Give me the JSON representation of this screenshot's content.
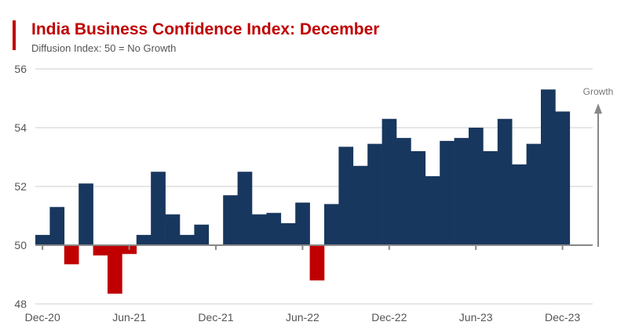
{
  "title": "India Business Confidence Index: December",
  "subtitle": "Diffusion Index: 50 = No Growth",
  "colors": {
    "above": "#18375e",
    "below": "#c00000",
    "title": "#c00000"
  },
  "chart_data": {
    "type": "bar",
    "title": "India Business Confidence Index: December",
    "subtitle": "Diffusion Index: 50 = No Growth",
    "baseline": 50,
    "ylim": [
      48,
      56
    ],
    "yticks": [
      48,
      50,
      52,
      54,
      56
    ],
    "grid": true,
    "xtick_labels": [
      "Dec-20",
      "Jun-21",
      "Dec-21",
      "Jun-22",
      "Dec-22",
      "Jun-23",
      "Dec-23"
    ],
    "annotation": "Growth",
    "categories": [
      "Dec-20",
      "Jan-21",
      "Feb-21",
      "Mar-21",
      "Apr-21",
      "May-21",
      "Jun-21",
      "Jul-21",
      "Aug-21",
      "Sep-21",
      "Oct-21",
      "Nov-21",
      "Dec-21",
      "Jan-22",
      "Feb-22",
      "Mar-22",
      "Apr-22",
      "May-22",
      "Jun-22",
      "Jul-22",
      "Aug-22",
      "Sep-22",
      "Oct-22",
      "Nov-22",
      "Dec-22",
      "Jan-23",
      "Feb-23",
      "Mar-23",
      "Apr-23",
      "May-23",
      "Jun-23",
      "Jul-23",
      "Aug-23",
      "Sep-23",
      "Oct-23",
      "Nov-23",
      "Dec-23"
    ],
    "values": [
      50.35,
      51.3,
      49.35,
      52.1,
      49.65,
      48.35,
      49.7,
      50.35,
      52.5,
      51.05,
      50.35,
      50.7,
      null,
      51.7,
      52.5,
      51.05,
      51.1,
      50.75,
      51.45,
      48.8,
      51.4,
      53.35,
      52.7,
      53.45,
      54.3,
      53.65,
      53.2,
      52.35,
      53.55,
      53.65,
      54.0,
      53.2,
      54.3,
      52.75,
      53.45,
      55.3,
      54.55
    ]
  }
}
